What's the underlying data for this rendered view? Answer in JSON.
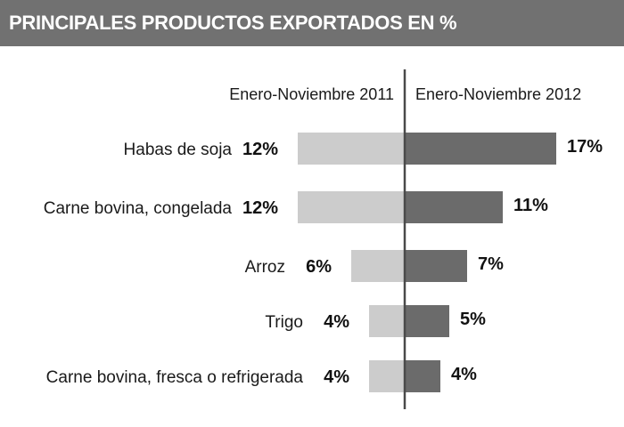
{
  "header": {
    "title": "PRINCIPALES PRODUCTOS EXPORTADOS EN %"
  },
  "colors": {
    "header_bg": "#717171",
    "bar_2011": "#cccccc",
    "bar_2012": "#6b6b6b",
    "axis": "#4a4a4a"
  },
  "chart_data": {
    "type": "bar",
    "orientation": "horizontal-diverging",
    "title": "PRINCIPALES PRODUCTOS EXPORTADOS EN %",
    "categories": [
      "Habas de soja",
      "Carne bovina, congelada",
      "Arroz",
      "Trigo",
      "Carne bovina, fresca o refrigerada"
    ],
    "series": [
      {
        "name": "Enero-Noviembre 2011",
        "values": [
          12,
          12,
          6,
          4,
          4
        ],
        "labels": [
          "12%",
          "12%",
          "6%",
          "4%",
          "4%"
        ],
        "color": "#cccccc",
        "side": "left"
      },
      {
        "name": "Enero-Noviembre 2012",
        "values": [
          17,
          11,
          7,
          5,
          4
        ],
        "labels": [
          "17%",
          "11%",
          "7%",
          "5%",
          "4%"
        ],
        "color": "#6b6b6b",
        "side": "right"
      }
    ],
    "unit": "%",
    "xlabel": "",
    "ylabel": "",
    "grid": false,
    "legend": "column headers above bars"
  }
}
